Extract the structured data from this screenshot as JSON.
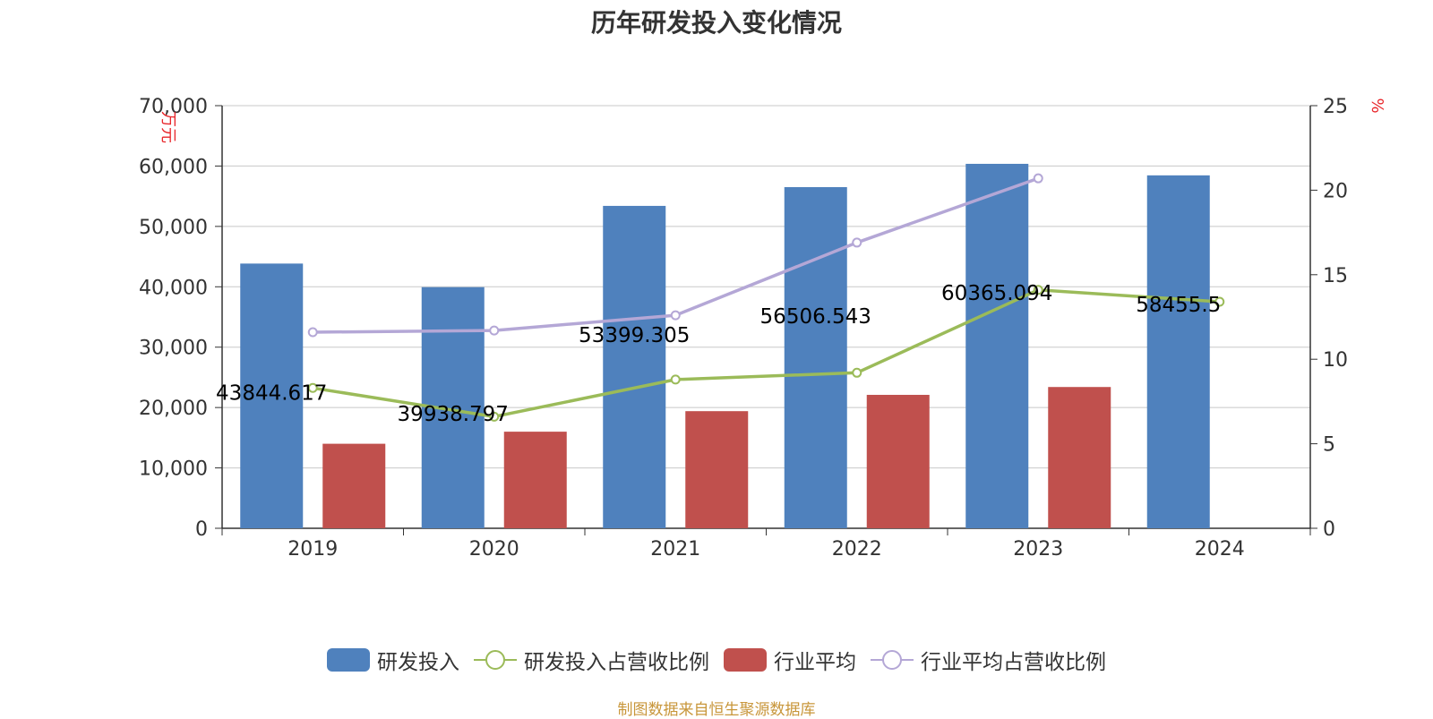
{
  "chart_data": {
    "type": "bar",
    "title": "历年研发投入变化情况",
    "categories": [
      "2019",
      "2020",
      "2021",
      "2022",
      "2023",
      "2024"
    ],
    "left_axis": {
      "unit": "万元",
      "ylim": [
        0,
        70000
      ],
      "ticks": [
        0,
        10000,
        20000,
        30000,
        40000,
        50000,
        60000,
        70000
      ],
      "tick_labels": [
        "0",
        "10,000",
        "20,000",
        "30,000",
        "40,000",
        "50,000",
        "60,000",
        "70,000"
      ]
    },
    "right_axis": {
      "unit": "%",
      "ylim": [
        0,
        25
      ],
      "ticks": [
        0,
        5,
        10,
        15,
        20,
        25
      ],
      "tick_labels": [
        "0",
        "5",
        "10",
        "15",
        "20",
        "25"
      ]
    },
    "grid": true,
    "legend_position": "bottom",
    "series": [
      {
        "name": "研发投入",
        "type": "bar",
        "axis": "left",
        "color": "#4f81bd",
        "values": [
          43844.617,
          39938.797,
          53399.305,
          56506.543,
          60365.094,
          58455.5
        ],
        "labels": [
          "43844.617",
          "39938.797",
          "53399.305",
          "56506.543",
          "60365.094",
          "58455.5"
        ]
      },
      {
        "name": "研发投入占营收比例",
        "type": "line",
        "axis": "right",
        "color": "#9bbb59",
        "values": [
          8.3,
          6.6,
          8.8,
          9.2,
          14.1,
          13.4
        ]
      },
      {
        "name": "行业平均",
        "type": "bar",
        "axis": "left",
        "color": "#c0504d",
        "values": [
          14000,
          16000,
          19400,
          22100,
          23400,
          null
        ]
      },
      {
        "name": "行业平均占营收比例",
        "type": "line",
        "axis": "right",
        "color": "#b4a7d6",
        "values": [
          11.6,
          11.7,
          12.6,
          16.9,
          20.7,
          null
        ]
      }
    ]
  },
  "footer": {
    "source": "制图数据来自恒生聚源数据库"
  }
}
